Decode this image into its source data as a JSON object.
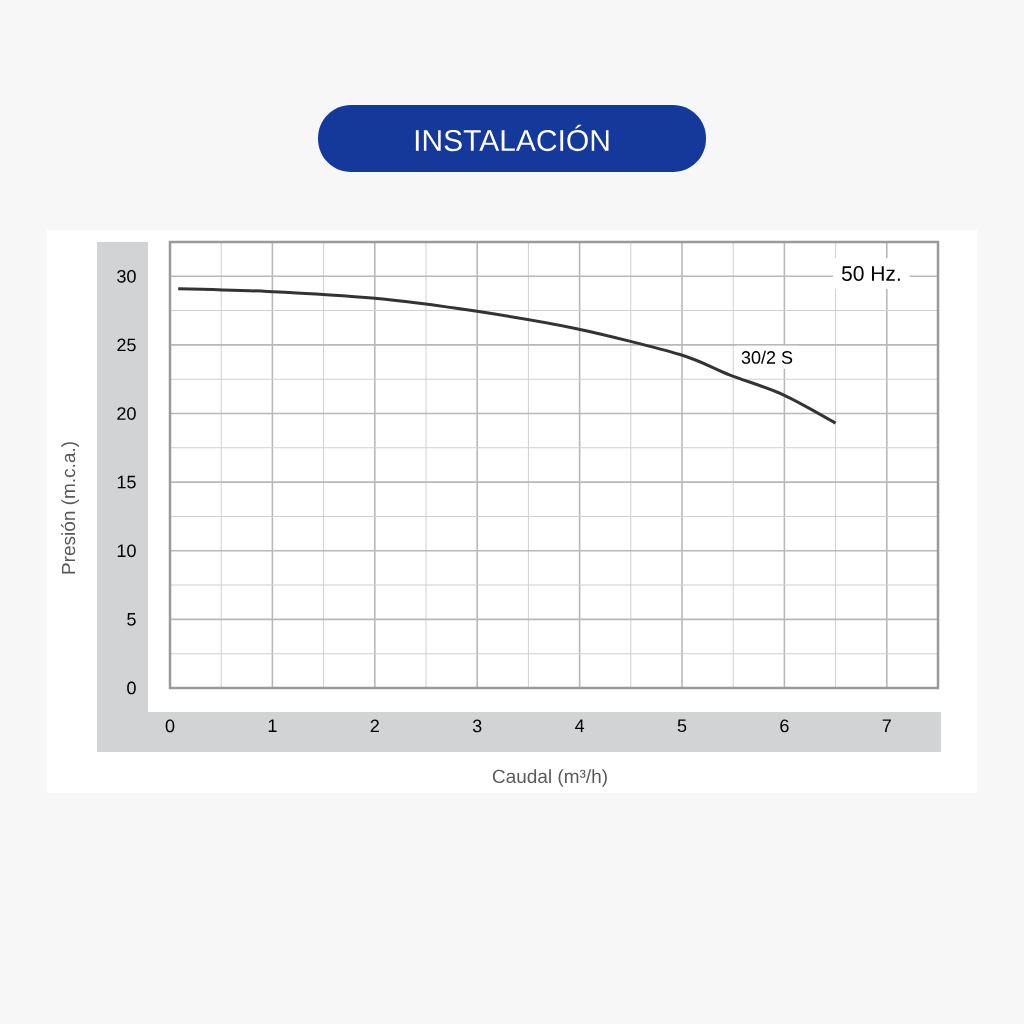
{
  "chart_data": {
    "type": "line",
    "title": "INSTALACIÓN",
    "xlabel": "Caudal (m³/h)",
    "ylabel": "Presión (m.c.a.)",
    "annotations": [
      "50 Hz."
    ],
    "series": [
      {
        "name": "30/2 S",
        "color": "#333333",
        "x": [
          0.08,
          0.95,
          2,
          2.95,
          3.96,
          4.98,
          5.47,
          5.98,
          6.5
        ],
        "values": [
          29.1,
          28.9,
          28.4,
          27.5,
          26.2,
          24.3,
          22.8,
          21.4,
          19.3
        ]
      }
    ],
    "xlim": [
      0,
      7.5
    ],
    "ylim": [
      0,
      32.5
    ],
    "xticks": [
      0,
      1,
      2,
      3,
      4,
      5,
      6,
      7
    ],
    "yticks": [
      0,
      5,
      10,
      15,
      20,
      25,
      30
    ],
    "grid": true
  }
}
